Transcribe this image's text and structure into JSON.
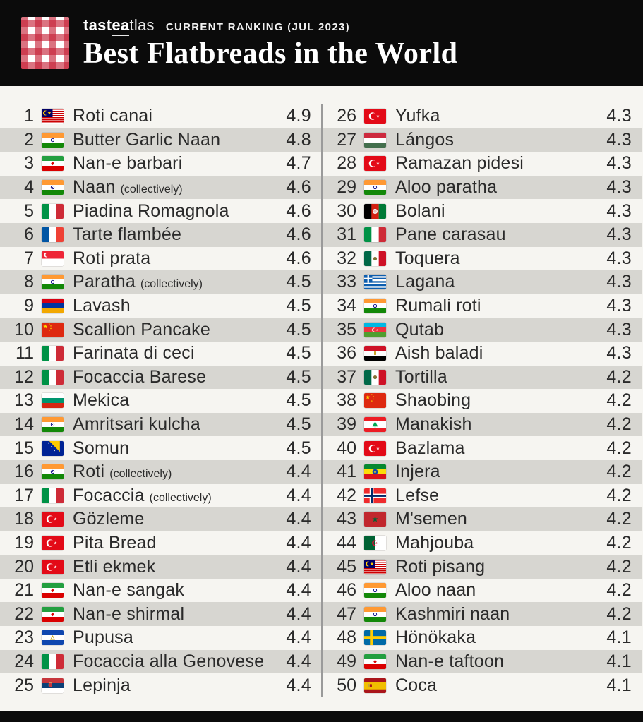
{
  "header": {
    "brand_1": "tast",
    "brand_2": "ea",
    "brand_3": "tlas",
    "subtitle": "CURRENT RANKING (JUL 2023)",
    "title": "Best Flatbreads in the World"
  },
  "colors": {
    "header_bg": "#0b0b0b",
    "page_bg": "#f6f5f1",
    "row_alt": "#d7d6d1",
    "text": "#2a2a2a",
    "divider": "#9a9a9a",
    "logo_red": "#c51d34"
  },
  "list": {
    "left": [
      {
        "rank": "1",
        "flag": "malaysia",
        "name": "Roti canai",
        "note": "",
        "rating": "4.9"
      },
      {
        "rank": "2",
        "flag": "india",
        "name": "Butter Garlic Naan",
        "note": "",
        "rating": "4.8"
      },
      {
        "rank": "3",
        "flag": "iran",
        "name": "Nan-e barbari",
        "note": "",
        "rating": "4.7"
      },
      {
        "rank": "4",
        "flag": "india",
        "name": "Naan",
        "note": "(collectively)",
        "rating": "4.6"
      },
      {
        "rank": "5",
        "flag": "italy",
        "name": "Piadina Romagnola",
        "note": "",
        "rating": "4.6"
      },
      {
        "rank": "6",
        "flag": "france",
        "name": "Tarte flambée",
        "note": "",
        "rating": "4.6"
      },
      {
        "rank": "7",
        "flag": "singapore",
        "name": "Roti prata",
        "note": "",
        "rating": "4.6"
      },
      {
        "rank": "8",
        "flag": "india",
        "name": "Paratha",
        "note": "(collectively)",
        "rating": "4.5"
      },
      {
        "rank": "9",
        "flag": "armenia",
        "name": "Lavash",
        "note": "",
        "rating": "4.5"
      },
      {
        "rank": "10",
        "flag": "china",
        "name": "Scallion Pancake",
        "note": "",
        "rating": "4.5"
      },
      {
        "rank": "11",
        "flag": "italy",
        "name": "Farinata di ceci",
        "note": "",
        "rating": "4.5"
      },
      {
        "rank": "12",
        "flag": "italy",
        "name": "Focaccia Barese",
        "note": "",
        "rating": "4.5"
      },
      {
        "rank": "13",
        "flag": "bulgaria",
        "name": "Mekica",
        "note": "",
        "rating": "4.5"
      },
      {
        "rank": "14",
        "flag": "india",
        "name": "Amritsari kulcha",
        "note": "",
        "rating": "4.5"
      },
      {
        "rank": "15",
        "flag": "bosnia",
        "name": "Somun",
        "note": "",
        "rating": "4.5"
      },
      {
        "rank": "16",
        "flag": "india",
        "name": "Roti",
        "note": "(collectively)",
        "rating": "4.4"
      },
      {
        "rank": "17",
        "flag": "italy",
        "name": "Focaccia",
        "note": "(collectively)",
        "rating": "4.4"
      },
      {
        "rank": "18",
        "flag": "turkey",
        "name": "Gözleme",
        "note": "",
        "rating": "4.4"
      },
      {
        "rank": "19",
        "flag": "turkey",
        "name": "Pita Bread",
        "note": "",
        "rating": "4.4"
      },
      {
        "rank": "20",
        "flag": "turkey",
        "name": "Etli ekmek",
        "note": "",
        "rating": "4.4"
      },
      {
        "rank": "21",
        "flag": "iran",
        "name": "Nan-e sangak",
        "note": "",
        "rating": "4.4"
      },
      {
        "rank": "22",
        "flag": "iran",
        "name": "Nan-e shirmal",
        "note": "",
        "rating": "4.4"
      },
      {
        "rank": "23",
        "flag": "el_salvador",
        "name": "Pupusa",
        "note": "",
        "rating": "4.4"
      },
      {
        "rank": "24",
        "flag": "italy",
        "name": "Focaccia alla Genovese",
        "note": "",
        "rating": "4.4"
      },
      {
        "rank": "25",
        "flag": "serbia",
        "name": "Lepinja",
        "note": "",
        "rating": "4.4"
      }
    ],
    "right": [
      {
        "rank": "26",
        "flag": "turkey",
        "name": "Yufka",
        "note": "",
        "rating": "4.3"
      },
      {
        "rank": "27",
        "flag": "hungary",
        "name": "Lángos",
        "note": "",
        "rating": "4.3"
      },
      {
        "rank": "28",
        "flag": "turkey",
        "name": "Ramazan pidesi",
        "note": "",
        "rating": "4.3"
      },
      {
        "rank": "29",
        "flag": "india",
        "name": "Aloo paratha",
        "note": "",
        "rating": "4.3"
      },
      {
        "rank": "30",
        "flag": "afghanistan",
        "name": "Bolani",
        "note": "",
        "rating": "4.3"
      },
      {
        "rank": "31",
        "flag": "italy",
        "name": "Pane carasau",
        "note": "",
        "rating": "4.3"
      },
      {
        "rank": "32",
        "flag": "mexico",
        "name": "Toquera",
        "note": "",
        "rating": "4.3"
      },
      {
        "rank": "33",
        "flag": "greece",
        "name": "Lagana",
        "note": "",
        "rating": "4.3"
      },
      {
        "rank": "34",
        "flag": "india",
        "name": "Rumali roti",
        "note": "",
        "rating": "4.3"
      },
      {
        "rank": "35",
        "flag": "azerbaijan",
        "name": "Qutab",
        "note": "",
        "rating": "4.3"
      },
      {
        "rank": "36",
        "flag": "egypt",
        "name": "Aish baladi",
        "note": "",
        "rating": "4.3"
      },
      {
        "rank": "37",
        "flag": "mexico",
        "name": "Tortilla",
        "note": "",
        "rating": "4.2"
      },
      {
        "rank": "38",
        "flag": "china",
        "name": "Shaobing",
        "note": "",
        "rating": "4.2"
      },
      {
        "rank": "39",
        "flag": "lebanon",
        "name": "Manakish",
        "note": "",
        "rating": "4.2"
      },
      {
        "rank": "40",
        "flag": "turkey",
        "name": "Bazlama",
        "note": "",
        "rating": "4.2"
      },
      {
        "rank": "41",
        "flag": "ethiopia",
        "name": "Injera",
        "note": "",
        "rating": "4.2"
      },
      {
        "rank": "42",
        "flag": "norway",
        "name": "Lefse",
        "note": "",
        "rating": "4.2"
      },
      {
        "rank": "43",
        "flag": "morocco",
        "name": "M'semen",
        "note": "",
        "rating": "4.2"
      },
      {
        "rank": "44",
        "flag": "algeria",
        "name": "Mahjouba",
        "note": "",
        "rating": "4.2"
      },
      {
        "rank": "45",
        "flag": "malaysia",
        "name": "Roti pisang",
        "note": "",
        "rating": "4.2"
      },
      {
        "rank": "46",
        "flag": "india",
        "name": "Aloo naan",
        "note": "",
        "rating": "4.2"
      },
      {
        "rank": "47",
        "flag": "india",
        "name": "Kashmiri naan",
        "note": "",
        "rating": "4.2"
      },
      {
        "rank": "48",
        "flag": "sweden",
        "name": "Hönökaka",
        "note": "",
        "rating": "4.1"
      },
      {
        "rank": "49",
        "flag": "iran",
        "name": "Nan-e taftoon",
        "note": "",
        "rating": "4.1"
      },
      {
        "rank": "50",
        "flag": "spain",
        "name": "Coca",
        "note": "",
        "rating": "4.1"
      }
    ]
  }
}
